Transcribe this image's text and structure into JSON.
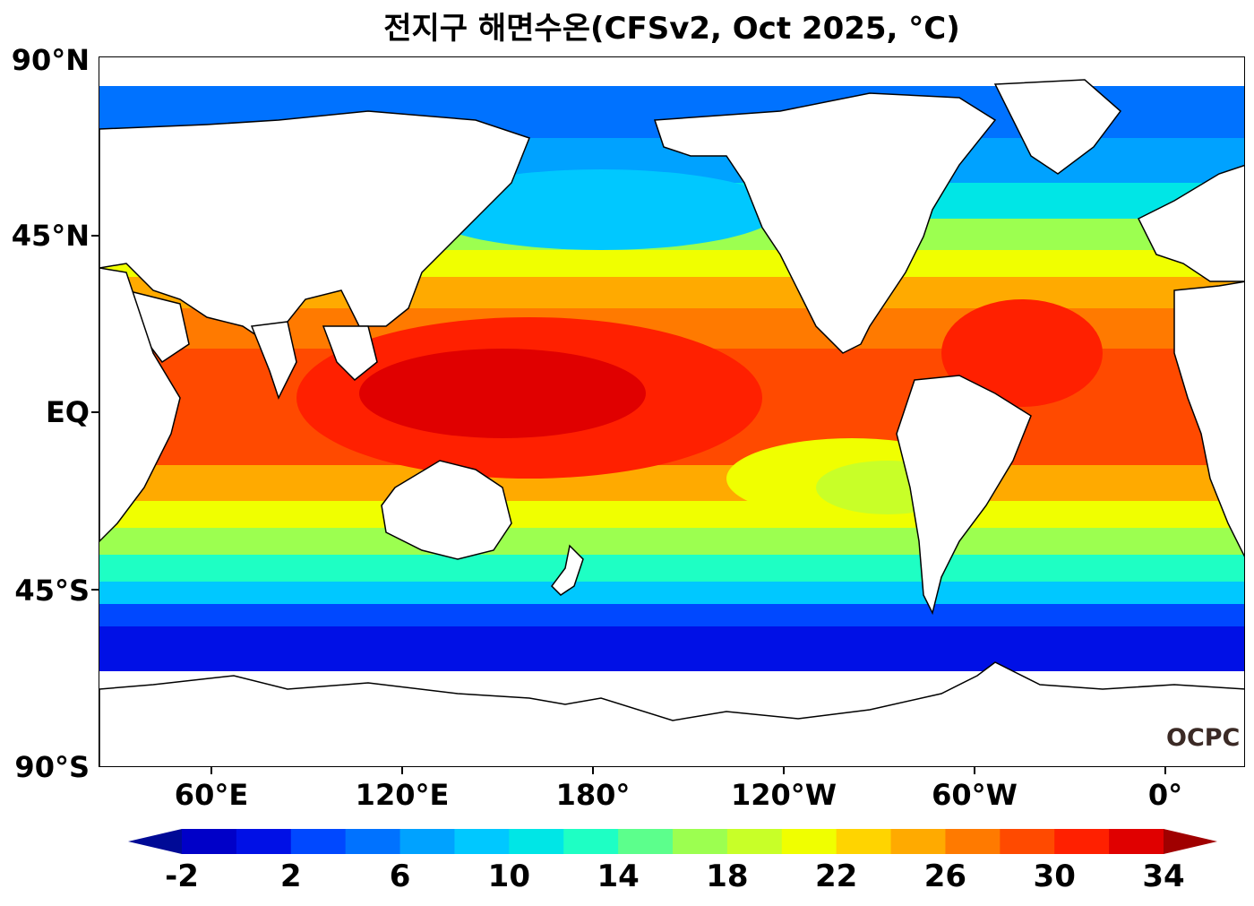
{
  "title": "전지구 해면수온(CFSv2, Oct 2025, °C)",
  "lat_labels": [
    "90°N",
    "45°N",
    "EQ",
    "45°S",
    "90°S"
  ],
  "lon_labels": [
    "60°E",
    "120°E",
    "180°",
    "120°W",
    "60°W",
    "0°"
  ],
  "watermark": "OCPC",
  "colorbar": {
    "ticks": [
      "-2",
      "2",
      "6",
      "10",
      "14",
      "18",
      "22",
      "26",
      "30",
      "34"
    ],
    "levels": [
      -2,
      0,
      2,
      4,
      6,
      8,
      10,
      12,
      14,
      16,
      18,
      20,
      22,
      24,
      26,
      28,
      30,
      32,
      34
    ],
    "colors": [
      "#000a96",
      "#0000c8",
      "#0010e6",
      "#0048ff",
      "#0072ff",
      "#00a2ff",
      "#00c8ff",
      "#00e6e6",
      "#1effc4",
      "#5cff8c",
      "#9cff50",
      "#c8ff28",
      "#f0ff00",
      "#ffd400",
      "#ffaa00",
      "#ff7a00",
      "#ff4a00",
      "#ff2000",
      "#e00000",
      "#a00000"
    ],
    "under_color": "#000a96",
    "over_color": "#a00000"
  },
  "colors": {
    "land": "#ffffff",
    "coastline": "#000000"
  }
}
